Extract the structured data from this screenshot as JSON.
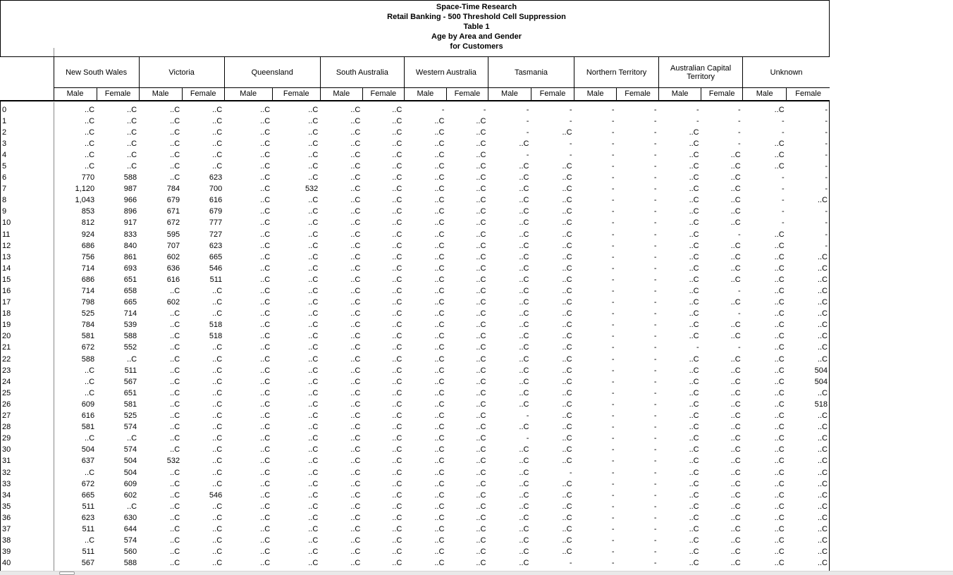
{
  "title_block": {
    "lines": [
      "Space-Time Research",
      "Retail Banking - 500 Threshold Cell Suppression",
      "Table 1",
      "Age by Area and Gender",
      "for Customers"
    ]
  },
  "table": {
    "row_dimension": "Age",
    "groups": [
      "New South Wales",
      "Victoria",
      "Queensland",
      "South Australia",
      "Western Australia",
      "Tasmania",
      "Northern Territory",
      "Australian Capital Territory",
      "Unknown"
    ],
    "sub_headers": [
      "Male",
      "Female"
    ],
    "suppressed_marker": "..C",
    "empty_marker": "-",
    "rows": [
      {
        "age": "0",
        "values": [
          "..C",
          "..C",
          "..C",
          "..C",
          "..C",
          "..C",
          "..C",
          "..C",
          "-",
          "-",
          "-",
          "-",
          "-",
          "-",
          "-",
          "-",
          "..C",
          "-"
        ]
      },
      {
        "age": "1",
        "values": [
          "..C",
          "..C",
          "..C",
          "..C",
          "..C",
          "..C",
          "..C",
          "..C",
          "..C",
          "..C",
          "-",
          "-",
          "-",
          "-",
          "-",
          "-",
          "-",
          "-"
        ]
      },
      {
        "age": "2",
        "values": [
          "..C",
          "..C",
          "..C",
          "..C",
          "..C",
          "..C",
          "..C",
          "..C",
          "..C",
          "..C",
          "-",
          "..C",
          "-",
          "-",
          "..C",
          "-",
          "-",
          "-"
        ]
      },
      {
        "age": "3",
        "values": [
          "..C",
          "..C",
          "..C",
          "..C",
          "..C",
          "..C",
          "..C",
          "..C",
          "..C",
          "..C",
          "..C",
          "-",
          "-",
          "-",
          "..C",
          "-",
          "..C",
          "-"
        ]
      },
      {
        "age": "4",
        "values": [
          "..C",
          "..C",
          "..C",
          "..C",
          "..C",
          "..C",
          "..C",
          "..C",
          "..C",
          "..C",
          "-",
          "-",
          "-",
          "-",
          "..C",
          "..C",
          "..C",
          "-"
        ]
      },
      {
        "age": "5",
        "values": [
          "..C",
          "..C",
          "..C",
          "..C",
          "..C",
          "..C",
          "..C",
          "..C",
          "..C",
          "..C",
          "..C",
          "..C",
          "-",
          "-",
          "..C",
          "..C",
          "..C",
          "-"
        ]
      },
      {
        "age": "6",
        "values": [
          "770",
          "588",
          "..C",
          "623",
          "..C",
          "..C",
          "..C",
          "..C",
          "..C",
          "..C",
          "..C",
          "..C",
          "-",
          "-",
          "..C",
          "..C",
          "-",
          "-"
        ]
      },
      {
        "age": "7",
        "values": [
          "1,120",
          "987",
          "784",
          "700",
          "..C",
          "532",
          "..C",
          "..C",
          "..C",
          "..C",
          "..C",
          "..C",
          "-",
          "-",
          "..C",
          "..C",
          "-",
          "-"
        ]
      },
      {
        "age": "8",
        "values": [
          "1,043",
          "966",
          "679",
          "616",
          "..C",
          "..C",
          "..C",
          "..C",
          "..C",
          "..C",
          "..C",
          "..C",
          "-",
          "-",
          "..C",
          "..C",
          "-",
          "..C"
        ]
      },
      {
        "age": "9",
        "values": [
          "853",
          "896",
          "671",
          "679",
          "..C",
          "..C",
          "..C",
          "..C",
          "..C",
          "..C",
          "..C",
          "..C",
          "-",
          "-",
          "..C",
          "..C",
          "-",
          "-"
        ]
      },
      {
        "age": "10",
        "values": [
          "812",
          "917",
          "672",
          "777",
          "..C",
          "..C",
          "..C",
          "..C",
          "..C",
          "..C",
          "..C",
          "..C",
          "-",
          "-",
          "..C",
          "..C",
          "-",
          "-"
        ]
      },
      {
        "age": "11",
        "values": [
          "924",
          "833",
          "595",
          "727",
          "..C",
          "..C",
          "..C",
          "..C",
          "..C",
          "..C",
          "..C",
          "..C",
          "-",
          "-",
          "..C",
          "-",
          "..C",
          "-"
        ]
      },
      {
        "age": "12",
        "values": [
          "686",
          "840",
          "707",
          "623",
          "..C",
          "..C",
          "..C",
          "..C",
          "..C",
          "..C",
          "..C",
          "..C",
          "-",
          "-",
          "..C",
          "..C",
          "..C",
          "-"
        ]
      },
      {
        "age": "13",
        "values": [
          "756",
          "861",
          "602",
          "665",
          "..C",
          "..C",
          "..C",
          "..C",
          "..C",
          "..C",
          "..C",
          "..C",
          "-",
          "-",
          "..C",
          "..C",
          "..C",
          "..C"
        ]
      },
      {
        "age": "14",
        "values": [
          "714",
          "693",
          "636",
          "546",
          "..C",
          "..C",
          "..C",
          "..C",
          "..C",
          "..C",
          "..C",
          "..C",
          "-",
          "-",
          "..C",
          "..C",
          "..C",
          "..C"
        ]
      },
      {
        "age": "15",
        "values": [
          "686",
          "651",
          "616",
          "511",
          "..C",
          "..C",
          "..C",
          "..C",
          "..C",
          "..C",
          "..C",
          "..C",
          "-",
          "-",
          "..C",
          "..C",
          "..C",
          "..C"
        ]
      },
      {
        "age": "16",
        "values": [
          "714",
          "658",
          "..C",
          "..C",
          "..C",
          "..C",
          "..C",
          "..C",
          "..C",
          "..C",
          "..C",
          "..C",
          "-",
          "-",
          "..C",
          "-",
          "..C",
          "..C"
        ]
      },
      {
        "age": "17",
        "values": [
          "798",
          "665",
          "602",
          "..C",
          "..C",
          "..C",
          "..C",
          "..C",
          "..C",
          "..C",
          "..C",
          "..C",
          "-",
          "-",
          "..C",
          "..C",
          "..C",
          "..C"
        ]
      },
      {
        "age": "18",
        "values": [
          "525",
          "714",
          "..C",
          "..C",
          "..C",
          "..C",
          "..C",
          "..C",
          "..C",
          "..C",
          "..C",
          "..C",
          "-",
          "-",
          "..C",
          "-",
          "..C",
          "..C"
        ]
      },
      {
        "age": "19",
        "values": [
          "784",
          "539",
          "..C",
          "518",
          "..C",
          "..C",
          "..C",
          "..C",
          "..C",
          "..C",
          "..C",
          "..C",
          "-",
          "-",
          "..C",
          "..C",
          "..C",
          "..C"
        ]
      },
      {
        "age": "20",
        "values": [
          "581",
          "588",
          "..C",
          "518",
          "..C",
          "..C",
          "..C",
          "..C",
          "..C",
          "..C",
          "..C",
          "..C",
          "-",
          "-",
          "..C",
          "..C",
          "..C",
          "..C"
        ]
      },
      {
        "age": "21",
        "values": [
          "672",
          "552",
          "..C",
          "..C",
          "..C",
          "..C",
          "..C",
          "..C",
          "..C",
          "..C",
          "..C",
          "..C",
          "-",
          "-",
          "-",
          "-",
          "..C",
          "..C"
        ]
      },
      {
        "age": "22",
        "values": [
          "588",
          "..C",
          "..C",
          "..C",
          "..C",
          "..C",
          "..C",
          "..C",
          "..C",
          "..C",
          "..C",
          "..C",
          "-",
          "-",
          "..C",
          "..C",
          "..C",
          "..C"
        ]
      },
      {
        "age": "23",
        "values": [
          "..C",
          "511",
          "..C",
          "..C",
          "..C",
          "..C",
          "..C",
          "..C",
          "..C",
          "..C",
          "..C",
          "..C",
          "-",
          "-",
          "..C",
          "..C",
          "..C",
          "504"
        ]
      },
      {
        "age": "24",
        "values": [
          "..C",
          "567",
          "..C",
          "..C",
          "..C",
          "..C",
          "..C",
          "..C",
          "..C",
          "..C",
          "..C",
          "..C",
          "-",
          "-",
          "..C",
          "..C",
          "..C",
          "504"
        ]
      },
      {
        "age": "25",
        "values": [
          "..C",
          "651",
          "..C",
          "..C",
          "..C",
          "..C",
          "..C",
          "..C",
          "..C",
          "..C",
          "..C",
          "..C",
          "-",
          "-",
          "..C",
          "..C",
          "..C",
          "..C"
        ]
      },
      {
        "age": "26",
        "values": [
          "609",
          "581",
          "..C",
          "..C",
          "..C",
          "..C",
          "..C",
          "..C",
          "..C",
          "..C",
          "..C",
          "..C",
          "-",
          "-",
          "..C",
          "..C",
          "..C",
          "518"
        ]
      },
      {
        "age": "27",
        "values": [
          "616",
          "525",
          "..C",
          "..C",
          "..C",
          "..C",
          "..C",
          "..C",
          "..C",
          "..C",
          "-",
          "..C",
          "-",
          "-",
          "..C",
          "..C",
          "..C",
          "..C"
        ]
      },
      {
        "age": "28",
        "values": [
          "581",
          "574",
          "..C",
          "..C",
          "..C",
          "..C",
          "..C",
          "..C",
          "..C",
          "..C",
          "..C",
          "..C",
          "-",
          "-",
          "..C",
          "..C",
          "..C",
          "..C"
        ]
      },
      {
        "age": "29",
        "values": [
          "..C",
          "..C",
          "..C",
          "..C",
          "..C",
          "..C",
          "..C",
          "..C",
          "..C",
          "..C",
          "-",
          "..C",
          "-",
          "-",
          "..C",
          "..C",
          "..C",
          "..C"
        ]
      },
      {
        "age": "30",
        "values": [
          "504",
          "574",
          "..C",
          "..C",
          "..C",
          "..C",
          "..C",
          "..C",
          "..C",
          "..C",
          "..C",
          "..C",
          "-",
          "-",
          "..C",
          "..C",
          "..C",
          "..C"
        ]
      },
      {
        "age": "31",
        "values": [
          "637",
          "504",
          "532",
          "..C",
          "..C",
          "..C",
          "..C",
          "..C",
          "..C",
          "..C",
          "..C",
          "..C",
          "-",
          "-",
          "..C",
          "..C",
          "..C",
          "..C"
        ]
      },
      {
        "age": "32",
        "values": [
          "..C",
          "504",
          "..C",
          "..C",
          "..C",
          "..C",
          "..C",
          "..C",
          "..C",
          "..C",
          "..C",
          "-",
          "-",
          "-",
          "..C",
          "..C",
          "..C",
          "..C"
        ]
      },
      {
        "age": "33",
        "values": [
          "672",
          "609",
          "..C",
          "..C",
          "..C",
          "..C",
          "..C",
          "..C",
          "..C",
          "..C",
          "..C",
          "..C",
          "-",
          "-",
          "..C",
          "..C",
          "..C",
          "..C"
        ]
      },
      {
        "age": "34",
        "values": [
          "665",
          "602",
          "..C",
          "546",
          "..C",
          "..C",
          "..C",
          "..C",
          "..C",
          "..C",
          "..C",
          "..C",
          "-",
          "-",
          "..C",
          "..C",
          "..C",
          "..C"
        ]
      },
      {
        "age": "35",
        "values": [
          "511",
          "..C",
          "..C",
          "..C",
          "..C",
          "..C",
          "..C",
          "..C",
          "..C",
          "..C",
          "..C",
          "..C",
          "-",
          "-",
          "..C",
          "..C",
          "..C",
          "..C"
        ]
      },
      {
        "age": "36",
        "values": [
          "623",
          "630",
          "..C",
          "..C",
          "..C",
          "..C",
          "..C",
          "..C",
          "..C",
          "..C",
          "..C",
          "..C",
          "-",
          "-",
          "..C",
          "..C",
          "..C",
          "..C"
        ]
      },
      {
        "age": "37",
        "values": [
          "511",
          "644",
          "..C",
          "..C",
          "..C",
          "..C",
          "..C",
          "..C",
          "..C",
          "..C",
          "..C",
          "..C",
          "-",
          "-",
          "..C",
          "..C",
          "..C",
          "..C"
        ]
      },
      {
        "age": "38",
        "values": [
          "..C",
          "574",
          "..C",
          "..C",
          "..C",
          "..C",
          "..C",
          "..C",
          "..C",
          "..C",
          "..C",
          "..C",
          "-",
          "-",
          "..C",
          "..C",
          "..C",
          "..C"
        ]
      },
      {
        "age": "39",
        "values": [
          "511",
          "560",
          "..C",
          "..C",
          "..C",
          "..C",
          "..C",
          "..C",
          "..C",
          "..C",
          "..C",
          "..C",
          "-",
          "-",
          "..C",
          "..C",
          "..C",
          "..C"
        ]
      },
      {
        "age": "40",
        "values": [
          "567",
          "588",
          "..C",
          "..C",
          "..C",
          "..C",
          "..C",
          "..C",
          "..C",
          "..C",
          "..C",
          "-",
          "-",
          "-",
          "..C",
          "..C",
          "..C",
          "..C"
        ]
      }
    ]
  },
  "colors": {
    "border": "#000000",
    "data_grid_line": "#888888",
    "scrollbar_track": "#e9e9e9",
    "scrollbar_thumb": "#f8f8f8"
  }
}
